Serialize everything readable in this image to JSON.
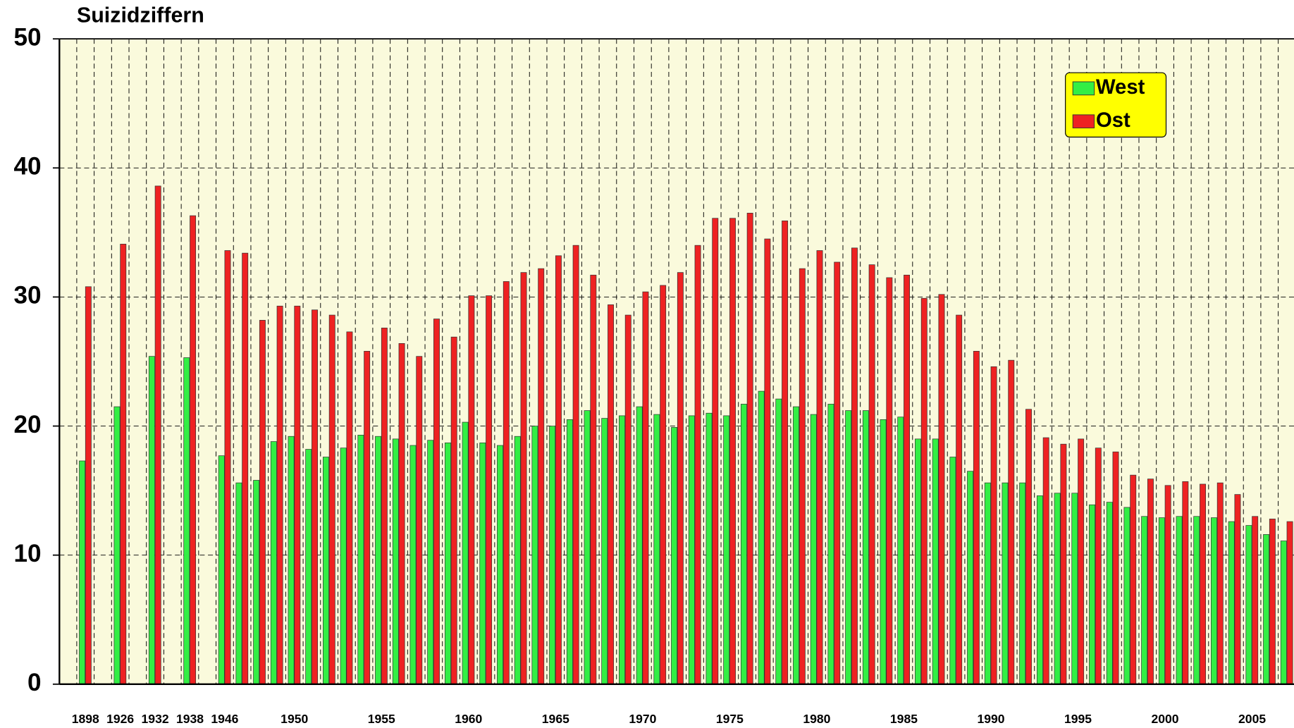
{
  "chart_data": {
    "type": "bar",
    "title": "Suizidziffern",
    "categories": [
      "1898",
      null,
      "1926",
      null,
      "1932",
      null,
      "1938",
      null,
      "1946",
      null,
      null,
      null,
      "1950",
      null,
      null,
      null,
      null,
      "1955",
      null,
      null,
      null,
      null,
      "1960",
      null,
      null,
      null,
      null,
      "1965",
      null,
      null,
      null,
      null,
      "1970",
      null,
      null,
      null,
      null,
      "1975",
      null,
      null,
      null,
      null,
      "1980",
      null,
      null,
      null,
      null,
      "1985",
      null,
      null,
      null,
      null,
      "1990",
      null,
      null,
      null,
      null,
      "1995",
      null,
      null,
      null,
      null,
      "2000",
      null,
      null,
      null,
      null,
      "2005",
      null,
      null
    ],
    "series": [
      {
        "name": "West",
        "color": "#33ee44",
        "values": [
          17.3,
          null,
          21.5,
          null,
          25.4,
          null,
          25.3,
          null,
          17.7,
          15.6,
          15.8,
          18.8,
          19.2,
          18.2,
          17.6,
          18.3,
          19.3,
          19.2,
          19.0,
          18.5,
          18.9,
          18.7,
          20.3,
          18.7,
          18.5,
          19.2,
          20.0,
          20.0,
          20.5,
          21.2,
          20.6,
          20.8,
          21.5,
          20.9,
          19.9,
          20.8,
          21.0,
          20.8,
          21.7,
          22.7,
          22.1,
          21.5,
          20.9,
          21.7,
          21.2,
          21.2,
          20.5,
          20.7,
          19.0,
          19.0,
          17.6,
          16.5,
          15.6,
          15.6,
          15.6,
          14.6,
          14.8,
          14.8,
          13.9,
          14.1,
          13.7,
          13.0,
          12.9,
          13.0,
          13.0,
          12.9,
          12.6,
          12.3,
          11.6,
          11.1
        ]
      },
      {
        "name": "Ost",
        "color": "#ee2222",
        "values": [
          30.8,
          null,
          34.1,
          null,
          38.6,
          null,
          36.3,
          null,
          33.6,
          33.4,
          28.2,
          29.3,
          29.3,
          29.0,
          28.6,
          27.3,
          25.8,
          27.6,
          26.4,
          25.4,
          28.3,
          26.9,
          30.1,
          30.1,
          31.2,
          31.9,
          32.2,
          33.2,
          34.0,
          31.7,
          29.4,
          28.6,
          30.4,
          30.9,
          31.9,
          34.0,
          36.1,
          36.1,
          36.5,
          34.5,
          35.9,
          32.2,
          33.6,
          32.7,
          33.8,
          32.5,
          31.5,
          31.7,
          29.9,
          30.2,
          28.6,
          25.8,
          24.6,
          25.1,
          21.3,
          19.1,
          18.6,
          19.0,
          18.3,
          18.0,
          16.2,
          15.9,
          15.4,
          15.7,
          15.5,
          15.6,
          14.7,
          13.0,
          12.8,
          12.6
        ]
      }
    ],
    "ylim": [
      0,
      50
    ],
    "yticks": [
      0,
      10,
      20,
      30,
      40,
      50
    ],
    "grid": true,
    "legend": "top-right",
    "background": "#fafadc"
  }
}
